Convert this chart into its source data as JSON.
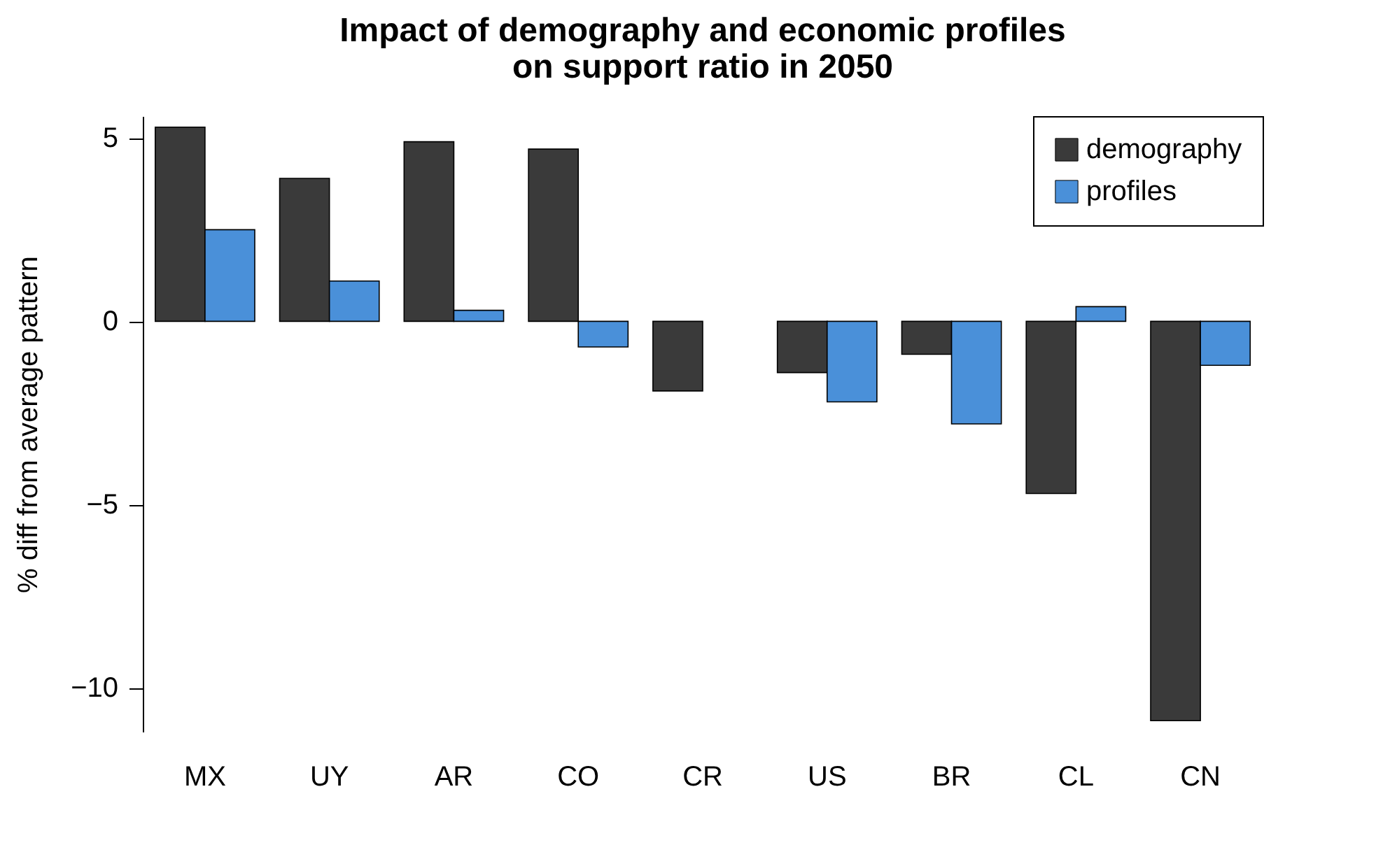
{
  "chart_data": {
    "type": "bar",
    "title": "Impact of demography and economic profiles\non support ratio in 2050",
    "ylabel": "% diff from average pattern",
    "categories": [
      "MX",
      "UY",
      "AR",
      "CO",
      "CR",
      "US",
      "BR",
      "CL",
      "CN"
    ],
    "series": [
      {
        "name": "demography",
        "color": "#3a3a3a",
        "values": [
          5.3,
          3.9,
          4.9,
          4.7,
          -1.9,
          -1.4,
          -0.9,
          -4.7,
          -10.9
        ]
      },
      {
        "name": "profiles",
        "color": "#4a90d9",
        "values": [
          2.5,
          1.1,
          0.3,
          -0.7,
          0,
          -2.2,
          -2.8,
          0.4,
          -1.2
        ]
      }
    ],
    "ylim": [
      -11.2,
      5.6
    ],
    "yticks": [
      -10,
      -5,
      0,
      5
    ],
    "grid": false,
    "legend": "top right"
  }
}
